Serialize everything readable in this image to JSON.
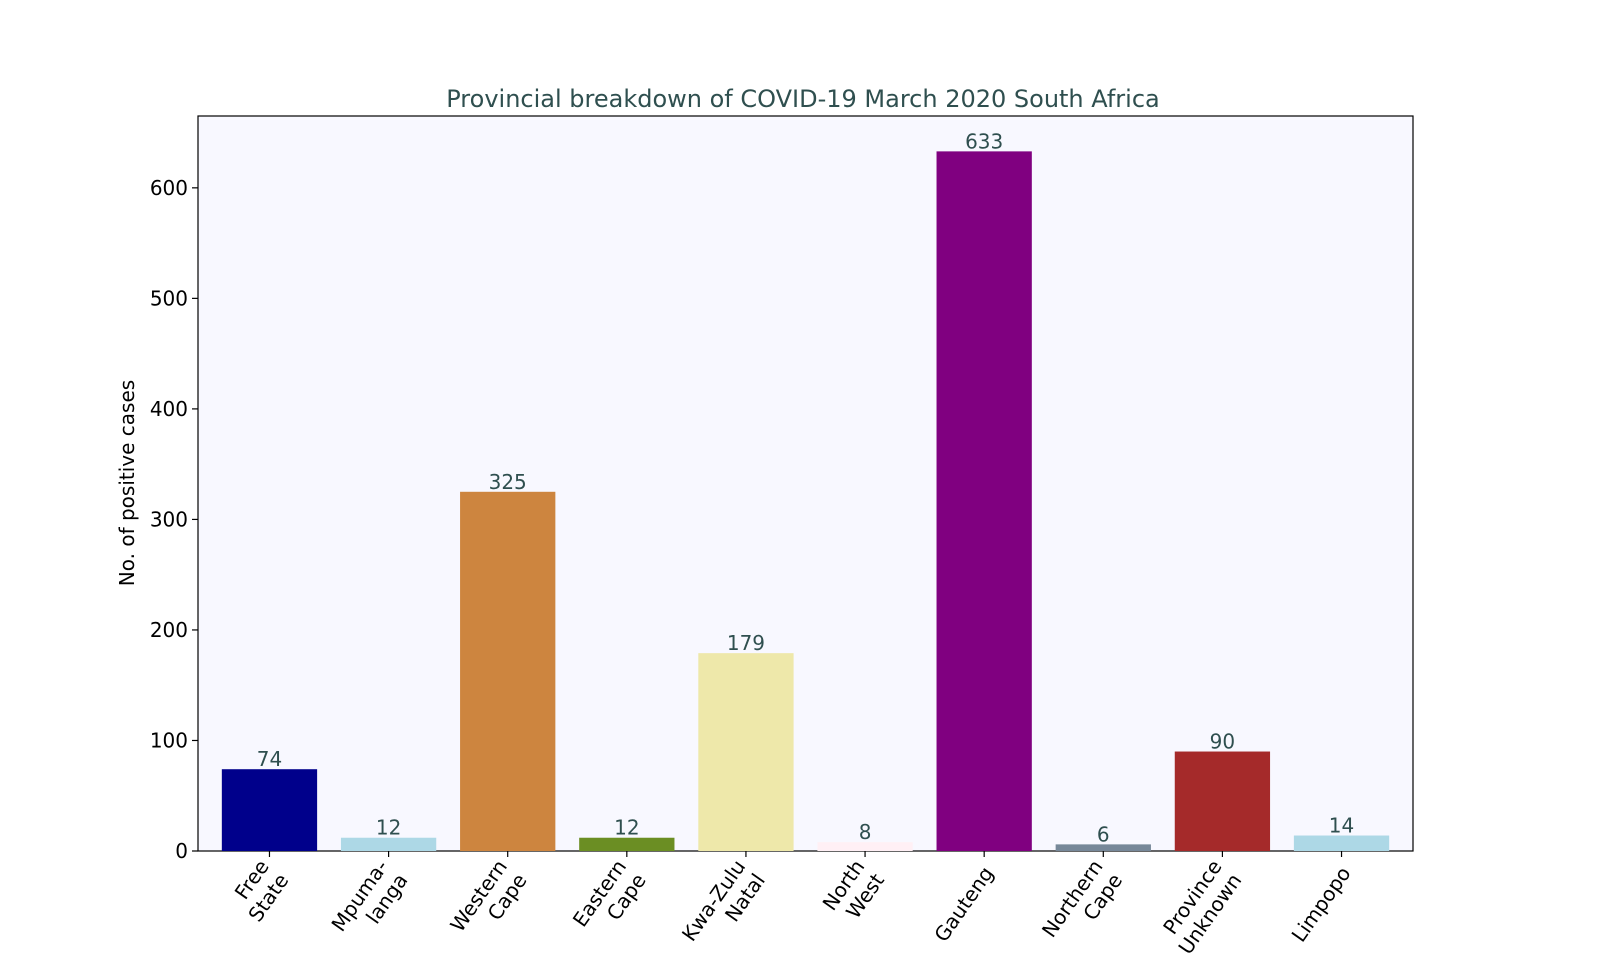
{
  "chart_data": {
    "type": "bar",
    "title": "Provincial breakdown of COVID-19 March 2020 South Africa",
    "xlabel": "",
    "ylabel": "No. of positive cases",
    "ylim": [
      0,
      665
    ],
    "yticks": [
      0,
      100,
      200,
      300,
      400,
      500,
      600
    ],
    "grid": false,
    "plot_background": "#f8f8ff",
    "title_color": "#2f4f4f",
    "value_label_color": "#2f4f4f",
    "categories": [
      [
        "Free",
        "State"
      ],
      [
        "Mpuma-",
        "langa"
      ],
      [
        "Western",
        "Cape"
      ],
      [
        "Eastern",
        "Cape"
      ],
      [
        "Kwa-Zulu",
        "Natal"
      ],
      [
        "North",
        "West"
      ],
      [
        "Gauteng"
      ],
      [
        "Northern",
        "Cape"
      ],
      [
        "Province",
        "Unknown"
      ],
      [
        "Limpopo"
      ]
    ],
    "values": [
      74,
      12,
      325,
      12,
      179,
      8,
      633,
      6,
      90,
      14
    ],
    "colors": [
      "#00008b",
      "#add8e6",
      "#cd853f",
      "#6b8e23",
      "#eee8aa",
      "#fff0f5",
      "#800080",
      "#778899",
      "#a52a2a",
      "#add8e6"
    ]
  }
}
